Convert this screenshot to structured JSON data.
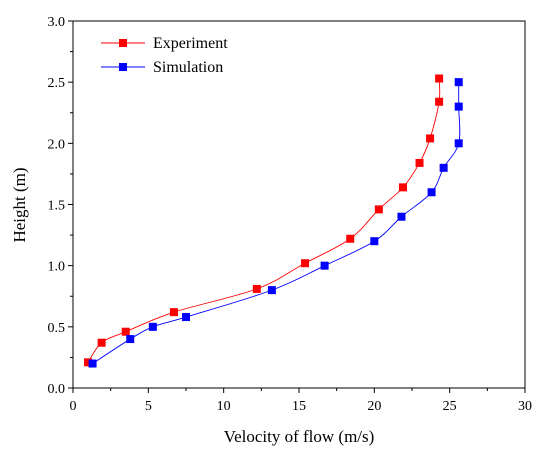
{
  "chart_data": {
    "type": "line",
    "xlabel": "Velocity of flow (m/s)",
    "ylabel": "Height (m)",
    "xlim": [
      0,
      30
    ],
    "ylim": [
      0,
      3.0
    ],
    "xticks": [
      0,
      5,
      10,
      15,
      20,
      25,
      30
    ],
    "yticks": [
      0.0,
      0.5,
      1.0,
      1.5,
      2.0,
      2.5,
      3.0
    ],
    "xtick_labels": [
      "0",
      "5",
      "10",
      "15",
      "20",
      "25",
      "30"
    ],
    "ytick_labels": [
      "0.0",
      "0.5",
      "1.0",
      "1.5",
      "2.0",
      "2.5",
      "3.0"
    ],
    "grid": false,
    "legend_position": "top-left",
    "series": [
      {
        "name": "Experiment",
        "color": "#ff0000",
        "marker": "square",
        "points": [
          [
            1.0,
            0.21
          ],
          [
            1.9,
            0.37
          ],
          [
            3.5,
            0.46
          ],
          [
            6.7,
            0.62
          ],
          [
            12.2,
            0.81
          ],
          [
            15.4,
            1.02
          ],
          [
            18.4,
            1.22
          ],
          [
            20.3,
            1.46
          ],
          [
            21.9,
            1.64
          ],
          [
            23.0,
            1.84
          ],
          [
            23.7,
            2.04
          ],
          [
            24.3,
            2.34
          ],
          [
            24.3,
            2.53
          ]
        ]
      },
      {
        "name": "Simulation",
        "color": "#0000ff",
        "marker": "square",
        "points": [
          [
            1.3,
            0.2
          ],
          [
            3.8,
            0.4
          ],
          [
            5.3,
            0.5
          ],
          [
            7.5,
            0.58
          ],
          [
            13.2,
            0.8
          ],
          [
            16.7,
            1.0
          ],
          [
            20.0,
            1.2
          ],
          [
            21.8,
            1.4
          ],
          [
            23.8,
            1.6
          ],
          [
            24.6,
            1.8
          ],
          [
            25.6,
            2.0
          ],
          [
            25.6,
            2.3
          ],
          [
            25.6,
            2.5
          ]
        ]
      }
    ]
  }
}
